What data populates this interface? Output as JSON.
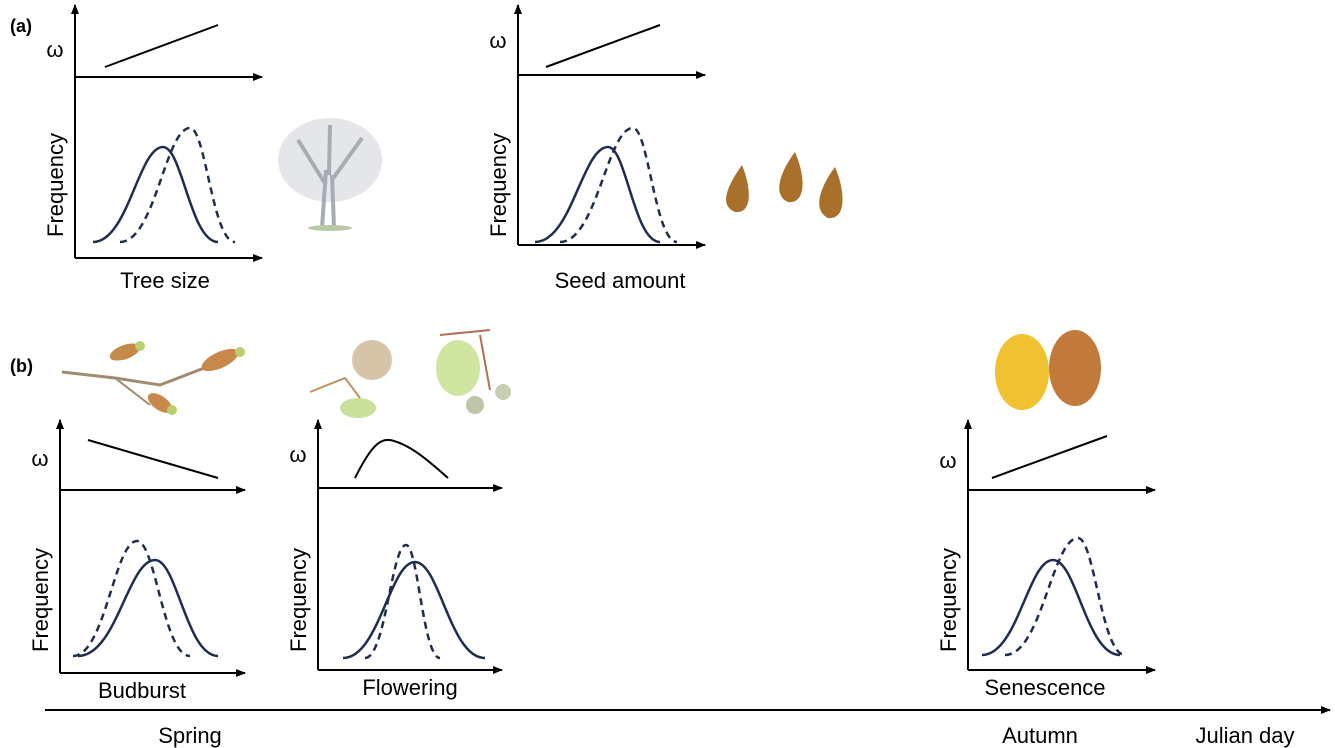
{
  "panel_a": {
    "label": "(a)",
    "panels": [
      {
        "omega": "ω",
        "y_label": "Frequency",
        "x_label": "Tree size"
      },
      {
        "omega": "ω",
        "y_label": "Frequency",
        "x_label": "Seed amount"
      }
    ]
  },
  "panel_b": {
    "label": "(b)",
    "panels": [
      {
        "omega": "ω",
        "y_label": "Frequency",
        "x_label": "Budburst"
      },
      {
        "omega": "ω",
        "y_label": "Frequency",
        "x_label": "Flowering"
      },
      {
        "omega": "ω",
        "y_label": "Frequency",
        "x_label": "Senescence"
      }
    ],
    "timeline": {
      "labels": [
        "Spring",
        "Autumn"
      ],
      "axis_label": "Julian day"
    }
  }
}
